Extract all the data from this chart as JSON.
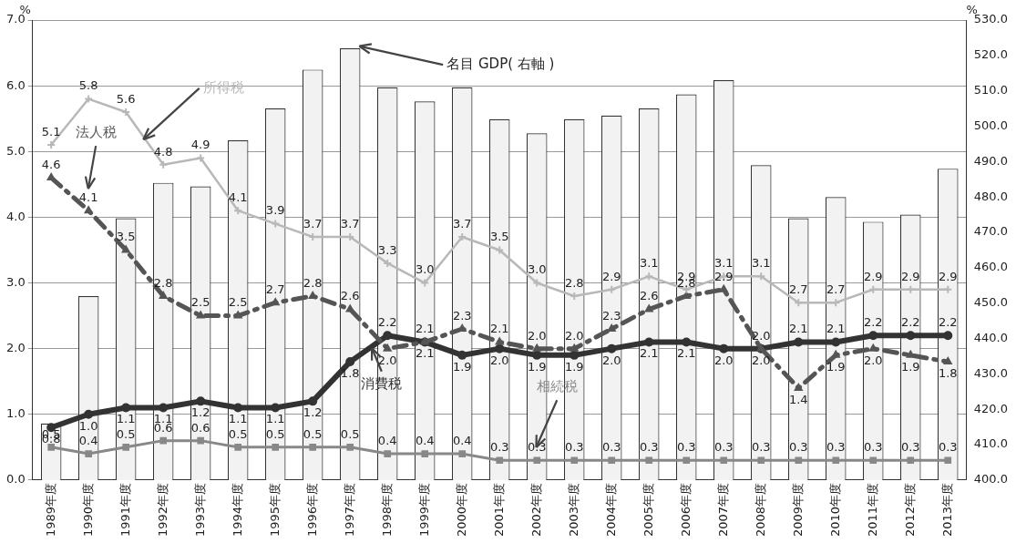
{
  "chart_data": {
    "type": "line",
    "ylabel": "%",
    "y2label": "%",
    "categories": [
      "1989年度",
      "1990年度",
      "1991年度",
      "1992年度",
      "1993年度",
      "1994年度",
      "1995年度",
      "1996年度",
      "1997年度",
      "1998年度",
      "1999年度",
      "2000年度",
      "2001年度",
      "2002年度",
      "2003年度",
      "2004年度",
      "2005年度",
      "2006年度",
      "2007年度",
      "2008年度",
      "2009年度",
      "2010年度",
      "2011年度",
      "2012年度",
      "2013年度"
    ],
    "ylim": [
      0,
      7
    ],
    "yticks": [
      {
        "value": 0,
        "label": "0.0"
      },
      {
        "value": 1,
        "label": "1.0"
      },
      {
        "value": 2,
        "label": "2.0"
      },
      {
        "value": 3,
        "label": "3.0"
      },
      {
        "value": 4,
        "label": "4.0"
      },
      {
        "value": 5,
        "label": "5.0"
      },
      {
        "value": 6,
        "label": "6.0"
      },
      {
        "value": 7,
        "label": "7.0"
      }
    ],
    "y2lim": [
      400,
      530
    ],
    "y2ticks": [
      {
        "value": 400,
        "label": "400.0"
      },
      {
        "value": 410,
        "label": "410.0"
      },
      {
        "value": 420,
        "label": "420.0"
      },
      {
        "value": 430,
        "label": "430.0"
      },
      {
        "value": 440,
        "label": "440.0"
      },
      {
        "value": 450,
        "label": "450.0"
      },
      {
        "value": 460,
        "label": "460.0"
      },
      {
        "value": 470,
        "label": "470.0"
      },
      {
        "value": 480,
        "label": "480.0"
      },
      {
        "value": 490,
        "label": "490.0"
      },
      {
        "value": 500,
        "label": "500.0"
      },
      {
        "value": 510,
        "label": "510.0"
      },
      {
        "value": 520,
        "label": "520.0"
      },
      {
        "value": 530,
        "label": "530.0"
      }
    ],
    "grid": "y",
    "legend": false,
    "series": [
      {
        "name": "名目 GDP( 右軸 )",
        "type": "bar",
        "axis": "y2",
        "color": "#f2f2f2",
        "values": [
          416,
          452,
          474,
          484,
          483,
          496,
          505,
          516,
          522,
          511,
          507,
          511,
          502,
          498,
          502,
          503,
          505,
          509,
          513,
          489,
          474,
          480,
          473,
          475,
          488
        ]
      },
      {
        "name": "所得税",
        "color": "#b8b8b8",
        "marker": "cross",
        "line_style": "solid",
        "values": [
          5.1,
          5.8,
          5.6,
          4.8,
          4.9,
          4.1,
          3.9,
          3.7,
          3.7,
          3.3,
          3.0,
          3.7,
          3.5,
          3.0,
          2.8,
          2.9,
          3.1,
          2.9,
          3.1,
          3.1,
          2.7,
          2.7,
          2.9,
          2.9,
          2.9
        ],
        "value_labels": [
          "5.1",
          "5.8",
          "5.6",
          "4.8",
          "4.9",
          "4.1",
          "3.9",
          "3.7",
          "3.7",
          "3.3",
          "3.0",
          "3.7",
          "3.5",
          "3.0",
          "2.8",
          "2.9",
          "3.1",
          "2.9",
          "3.1",
          "3.1",
          "2.7",
          "2.7",
          "2.9",
          "2.9",
          "2.9"
        ]
      },
      {
        "name": "法人税",
        "color": "#555555",
        "marker": "triangle",
        "line_style": "dashed",
        "values": [
          4.6,
          4.1,
          3.5,
          2.8,
          2.5,
          2.5,
          2.7,
          2.8,
          2.6,
          2.0,
          2.1,
          2.3,
          2.1,
          2.0,
          2.0,
          2.3,
          2.6,
          2.8,
          2.9,
          2.0,
          1.4,
          1.9,
          2.0,
          1.9,
          1.8
        ],
        "value_labels": [
          "4.6",
          "4.1",
          "3.5",
          "2.8",
          "2.5",
          "2.5",
          "2.7",
          "2.8",
          "2.6",
          "2.0",
          "2.1",
          "2.3",
          "2.1",
          "2.0",
          "2.0",
          "2.3",
          "2.6",
          "2.8",
          "2.9",
          "2.0",
          "1.4",
          "1.9",
          "2.0",
          "1.9",
          "1.8"
        ]
      },
      {
        "name": "消費税",
        "color": "#333333",
        "marker": "circle",
        "line_style": "solid",
        "values": [
          0.8,
          1.0,
          1.1,
          1.1,
          1.2,
          1.1,
          1.1,
          1.2,
          1.8,
          2.2,
          2.1,
          1.9,
          2.0,
          1.9,
          1.9,
          2.0,
          2.1,
          2.1,
          2.0,
          2.0,
          2.1,
          2.1,
          2.2,
          2.2,
          2.2
        ],
        "value_labels": [
          "0.8",
          "1.0",
          "1.1",
          "1.1",
          "1.2",
          "1.1",
          "1.1",
          "1.2",
          "1.8",
          "2.2",
          "2.1",
          "1.9",
          "2.0",
          "1.9",
          "1.9",
          "2.0",
          "2.1",
          "2.1",
          "2.0",
          "2.0",
          "2.1",
          "2.1",
          "2.2",
          "2.2",
          "2.2"
        ]
      },
      {
        "name": "相続税",
        "color": "#888888",
        "marker": "square",
        "line_style": "solid",
        "values": [
          0.5,
          0.4,
          0.5,
          0.6,
          0.6,
          0.5,
          0.5,
          0.5,
          0.5,
          0.4,
          0.4,
          0.4,
          0.3,
          0.3,
          0.3,
          0.3,
          0.3,
          0.3,
          0.3,
          0.3,
          0.3,
          0.3,
          0.3,
          0.3,
          0.3
        ],
        "value_labels": [
          "0.5",
          "0.4",
          "0.5",
          "0.6",
          "0.6",
          "0.5",
          "0.5",
          "0.5",
          "0.5",
          "0.4",
          "0.4",
          "0.4",
          "0.3",
          "0.3",
          "0.3",
          "0.3",
          "0.3",
          "0.3",
          "0.3",
          "0.3",
          "0.3",
          "0.3",
          "0.3",
          "0.3",
          "0.3"
        ]
      }
    ]
  }
}
